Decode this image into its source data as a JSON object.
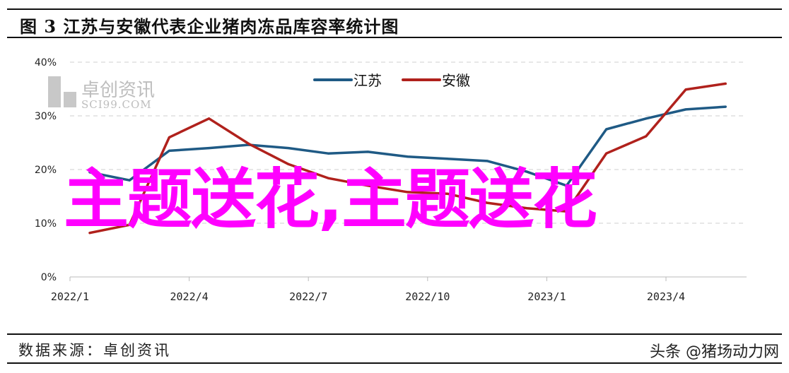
{
  "chart_data": {
    "type": "line",
    "title": "图 3  江苏与安徽代表企业猪肉冻品库容率统计图",
    "x": [
      "2022/1",
      "2022/2",
      "2022/3",
      "2022/4",
      "2022/5",
      "2022/6",
      "2022/7",
      "2022/8",
      "2022/9",
      "2022/10",
      "2022/11",
      "2022/12",
      "2023/1",
      "2023/2",
      "2023/3",
      "2023/4",
      "2023/5"
    ],
    "x_tick_labels": [
      "2022/1",
      "2022/4",
      "2022/7",
      "2022/10",
      "2023/1",
      "2023/4"
    ],
    "y_tick_labels": [
      "0%",
      "10%",
      "20%",
      "30%",
      "40%"
    ],
    "ylim": [
      0,
      40
    ],
    "y_unit": "%",
    "grid": "horizontal-dashed",
    "legend_placement": "top-center",
    "series": [
      {
        "name": "江苏",
        "color": "#1f5a85",
        "values": [
          19.5,
          18.0,
          23.5,
          24.0,
          24.6,
          24.0,
          23.0,
          23.3,
          22.4,
          22.0,
          21.6,
          19.6,
          17.0,
          27.5,
          29.5,
          31.2,
          31.7
        ]
      },
      {
        "name": "安徽",
        "color": "#b0211c",
        "values": [
          8.2,
          9.7,
          26.0,
          29.5,
          24.8,
          21.0,
          18.4,
          17.0,
          15.8,
          15.5,
          13.8,
          12.8,
          12.2,
          23.0,
          26.2,
          34.9,
          36.0
        ]
      }
    ]
  },
  "watermark": {
    "cn": "卓创资讯",
    "en": "SCI99.COM"
  },
  "overlay_text": "主题送花,主题送花",
  "footer": {
    "source": "数据来源：卓创资讯",
    "credit": "头条 @猪场动力网"
  }
}
